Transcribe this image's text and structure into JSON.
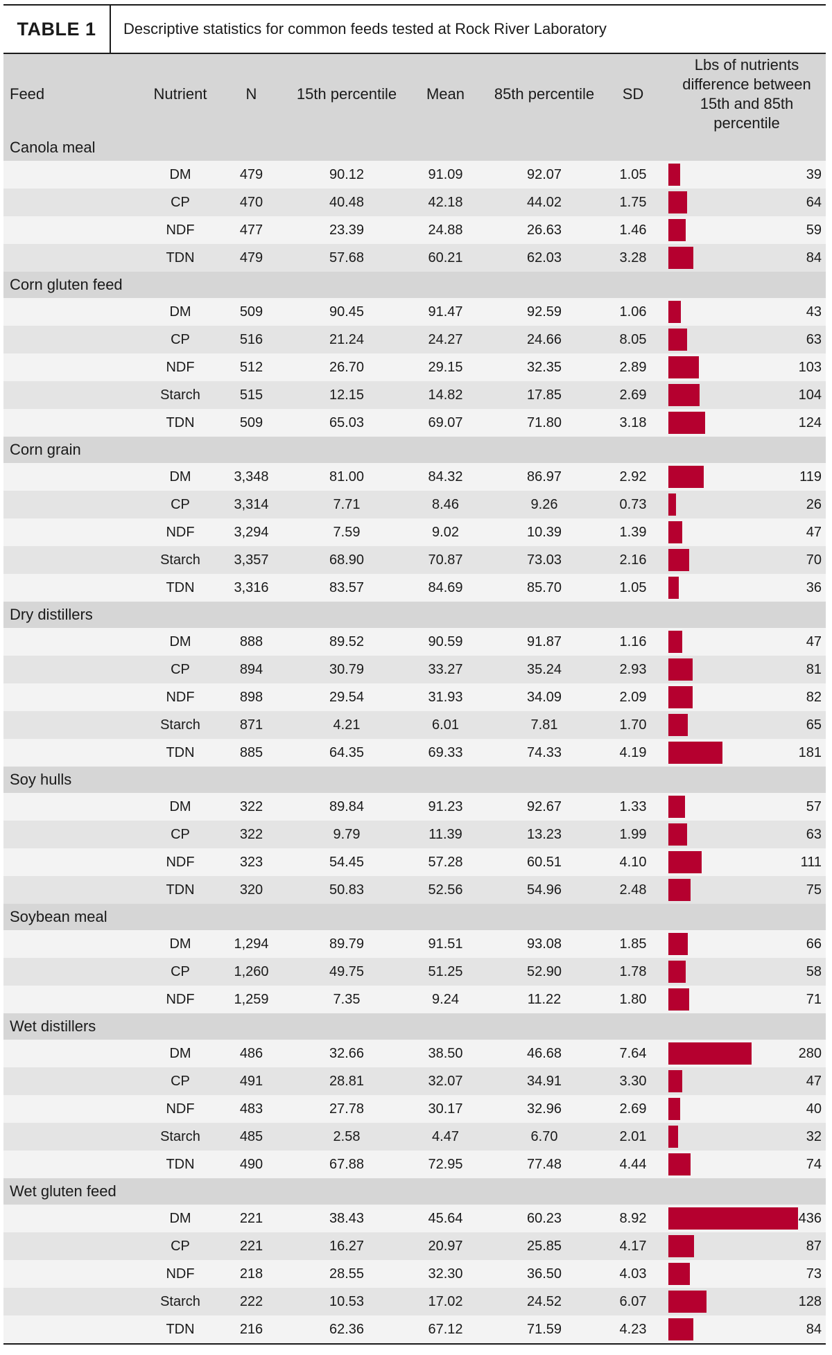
{
  "title": {
    "label": "TABLE 1",
    "caption": "Descriptive statistics for common feeds tested at Rock River Laboratory"
  },
  "columns": {
    "feed": "Feed",
    "nutrient": "Nutrient",
    "n": "N",
    "p15": "15th percentile",
    "mean": "Mean",
    "p85": "85th percentile",
    "sd": "SD",
    "diff": "Lbs of nutrients difference between 15th and 85th percentile"
  },
  "colors": {
    "bar": "#b5002f",
    "header_bg": "#d6d6d6",
    "row_light": "#f3f3f3",
    "row_dark": "#e4e4e4"
  },
  "groups": [
    {
      "name": "Canola meal",
      "rows": [
        {
          "nutrient": "DM",
          "n": "479",
          "p15": "90.12",
          "mean": "91.09",
          "p85": "92.07",
          "sd": "1.05",
          "diff": 39
        },
        {
          "nutrient": "CP",
          "n": "470",
          "p15": "40.48",
          "mean": "42.18",
          "p85": "44.02",
          "sd": "1.75",
          "diff": 64
        },
        {
          "nutrient": "NDF",
          "n": "477",
          "p15": "23.39",
          "mean": "24.88",
          "p85": "26.63",
          "sd": "1.46",
          "diff": 59
        },
        {
          "nutrient": "TDN",
          "n": "479",
          "p15": "57.68",
          "mean": "60.21",
          "p85": "62.03",
          "sd": "3.28",
          "diff": 84
        }
      ]
    },
    {
      "name": "Corn gluten feed",
      "rows": [
        {
          "nutrient": "DM",
          "n": "509",
          "p15": "90.45",
          "mean": "91.47",
          "p85": "92.59",
          "sd": "1.06",
          "diff": 43
        },
        {
          "nutrient": "CP",
          "n": "516",
          "p15": "21.24",
          "mean": "24.27",
          "p85": "24.66",
          "sd": "8.05",
          "diff": 63
        },
        {
          "nutrient": "NDF",
          "n": "512",
          "p15": "26.70",
          "mean": "29.15",
          "p85": "32.35",
          "sd": "2.89",
          "diff": 103
        },
        {
          "nutrient": "Starch",
          "n": "515",
          "p15": "12.15",
          "mean": "14.82",
          "p85": "17.85",
          "sd": "2.69",
          "diff": 104
        },
        {
          "nutrient": "TDN",
          "n": "509",
          "p15": "65.03",
          "mean": "69.07",
          "p85": "71.80",
          "sd": "3.18",
          "diff": 124
        }
      ]
    },
    {
      "name": "Corn grain",
      "rows": [
        {
          "nutrient": "DM",
          "n": "3,348",
          "p15": "81.00",
          "mean": "84.32",
          "p85": "86.97",
          "sd": "2.92",
          "diff": 119
        },
        {
          "nutrient": "CP",
          "n": "3,314",
          "p15": "7.71",
          "mean": "8.46",
          "p85": "9.26",
          "sd": "0.73",
          "diff": 26
        },
        {
          "nutrient": "NDF",
          "n": "3,294",
          "p15": "7.59",
          "mean": "9.02",
          "p85": "10.39",
          "sd": "1.39",
          "diff": 47
        },
        {
          "nutrient": "Starch",
          "n": "3,357",
          "p15": "68.90",
          "mean": "70.87",
          "p85": "73.03",
          "sd": "2.16",
          "diff": 70
        },
        {
          "nutrient": "TDN",
          "n": "3,316",
          "p15": "83.57",
          "mean": "84.69",
          "p85": "85.70",
          "sd": "1.05",
          "diff": 36
        }
      ]
    },
    {
      "name": "Dry distillers",
      "rows": [
        {
          "nutrient": "DM",
          "n": "888",
          "p15": "89.52",
          "mean": "90.59",
          "p85": "91.87",
          "sd": "1.16",
          "diff": 47
        },
        {
          "nutrient": "CP",
          "n": "894",
          "p15": "30.79",
          "mean": "33.27",
          "p85": "35.24",
          "sd": "2.93",
          "diff": 81
        },
        {
          "nutrient": "NDF",
          "n": "898",
          "p15": "29.54",
          "mean": "31.93",
          "p85": "34.09",
          "sd": "2.09",
          "diff": 82
        },
        {
          "nutrient": "Starch",
          "n": "871",
          "p15": "4.21",
          "mean": "6.01",
          "p85": "7.81",
          "sd": "1.70",
          "diff": 65
        },
        {
          "nutrient": "TDN",
          "n": "885",
          "p15": "64.35",
          "mean": "69.33",
          "p85": "74.33",
          "sd": "4.19",
          "diff": 181
        }
      ]
    },
    {
      "name": "Soy hulls",
      "rows": [
        {
          "nutrient": "DM",
          "n": "322",
          "p15": "89.84",
          "mean": "91.23",
          "p85": "92.67",
          "sd": "1.33",
          "diff": 57
        },
        {
          "nutrient": "CP",
          "n": "322",
          "p15": "9.79",
          "mean": "11.39",
          "p85": "13.23",
          "sd": "1.99",
          "diff": 63
        },
        {
          "nutrient": "NDF",
          "n": "323",
          "p15": "54.45",
          "mean": "57.28",
          "p85": "60.51",
          "sd": "4.10",
          "diff": 111
        },
        {
          "nutrient": "TDN",
          "n": "320",
          "p15": "50.83",
          "mean": "52.56",
          "p85": "54.96",
          "sd": "2.48",
          "diff": 75
        }
      ]
    },
    {
      "name": "Soybean meal",
      "rows": [
        {
          "nutrient": "DM",
          "n": "1,294",
          "p15": "89.79",
          "mean": "91.51",
          "p85": "93.08",
          "sd": "1.85",
          "diff": 66
        },
        {
          "nutrient": "CP",
          "n": "1,260",
          "p15": "49.75",
          "mean": "51.25",
          "p85": "52.90",
          "sd": "1.78",
          "diff": 58
        },
        {
          "nutrient": "NDF",
          "n": "1,259",
          "p15": "7.35",
          "mean": "9.24",
          "p85": "11.22",
          "sd": "1.80",
          "diff": 71
        }
      ]
    },
    {
      "name": "Wet distillers",
      "rows": [
        {
          "nutrient": "DM",
          "n": "486",
          "p15": "32.66",
          "mean": "38.50",
          "p85": "46.68",
          "sd": "7.64",
          "diff": 280
        },
        {
          "nutrient": "CP",
          "n": "491",
          "p15": "28.81",
          "mean": "32.07",
          "p85": "34.91",
          "sd": "3.30",
          "diff": 47
        },
        {
          "nutrient": "NDF",
          "n": "483",
          "p15": "27.78",
          "mean": "30.17",
          "p85": "32.96",
          "sd": "2.69",
          "diff": 40
        },
        {
          "nutrient": "Starch",
          "n": "485",
          "p15": "2.58",
          "mean": "4.47",
          "p85": "6.70",
          "sd": "2.01",
          "diff": 32
        },
        {
          "nutrient": "TDN",
          "n": "490",
          "p15": "67.88",
          "mean": "72.95",
          "p85": "77.48",
          "sd": "4.44",
          "diff": 74
        }
      ]
    },
    {
      "name": "Wet gluten feed",
      "rows": [
        {
          "nutrient": "DM",
          "n": "221",
          "p15": "38.43",
          "mean": "45.64",
          "p85": "60.23",
          "sd": "8.92",
          "diff": 436
        },
        {
          "nutrient": "CP",
          "n": "221",
          "p15": "16.27",
          "mean": "20.97",
          "p85": "25.85",
          "sd": "4.17",
          "diff": 87
        },
        {
          "nutrient": "NDF",
          "n": "218",
          "p15": "28.55",
          "mean": "32.30",
          "p85": "36.50",
          "sd": "4.03",
          "diff": 73
        },
        {
          "nutrient": "Starch",
          "n": "222",
          "p15": "10.53",
          "mean": "17.02",
          "p85": "24.52",
          "sd": "6.07",
          "diff": 128
        },
        {
          "nutrient": "TDN",
          "n": "216",
          "p15": "62.36",
          "mean": "67.12",
          "p85": "71.59",
          "sd": "4.23",
          "diff": 84
        }
      ]
    }
  ]
}
